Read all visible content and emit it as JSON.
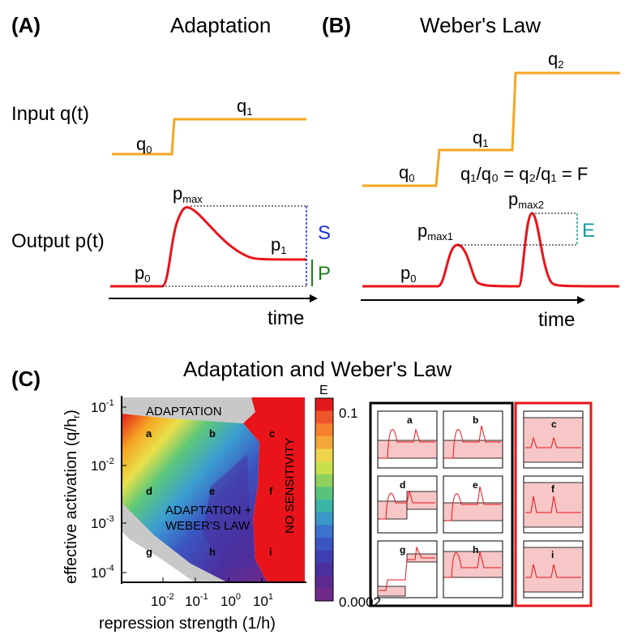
{
  "panel_a": {
    "label": "(A)",
    "title": "Adaptation",
    "input_label": "Input q(t)",
    "output_label": "Output p(t)",
    "q0": "q",
    "q0_sub": "0",
    "q1": "q",
    "q1_sub": "1",
    "pmax": "p",
    "pmax_sub": "max",
    "p0": "p",
    "p0_sub": "0",
    "p1": "p",
    "p1_sub": "1",
    "s_label": "S",
    "p_label": "P",
    "time_label": "time"
  },
  "panel_b": {
    "label": "(B)",
    "title": "Weber's Law",
    "q0": "q",
    "q0_sub": "0",
    "q1": "q",
    "q1_sub": "1",
    "q2": "q",
    "q2_sub": "2",
    "ratio_eq": "q₁/q₀ = q₂/q₁ = F",
    "pmax1": "p",
    "pmax1_sub": "max1",
    "pmax2": "p",
    "pmax2_sub": "max2",
    "p0": "p",
    "p0_sub": "0",
    "e_label": "E",
    "time_label": "time"
  },
  "panel_c": {
    "label": "(C)",
    "title": "Adaptation and Weber's Law",
    "ylabel": "effective activation (q/h",
    "ylabel_sub": "r",
    "ylabel_end": ")",
    "xlabel": "repression strength (1/h)",
    "y_ticks": [
      {
        "base": "10",
        "exp": "-1"
      },
      {
        "base": "10",
        "exp": "-2"
      },
      {
        "base": "10",
        "exp": "-3"
      },
      {
        "base": "10",
        "exp": "-4"
      }
    ],
    "x_ticks": [
      {
        "base": "10",
        "exp": "-2"
      },
      {
        "base": "10",
        "exp": "-1"
      },
      {
        "base": "10",
        "exp": "0"
      },
      {
        "base": "10",
        "exp": "1"
      }
    ],
    "region_adaptation": "ADAPTATION",
    "region_weber_1": "ADAPTATION +",
    "region_weber_2": "WEBER'S LAW",
    "region_nosens": "NO SENSITIVITY",
    "grid_letters": [
      "a",
      "b",
      "c",
      "d",
      "e",
      "f",
      "g",
      "h",
      "i"
    ],
    "colorbar_title": "E",
    "colorbar_max": "0.1",
    "colorbar_min": "0.0002",
    "colors": {
      "orange": "#f5a623",
      "red": "#e8141a",
      "blue_guide": "#1f2fd6",
      "green_guide": "#1e7d1e",
      "teal_guide": "#1a9c9c",
      "adapt_gray": "#c8c8c8",
      "pink": "#f7c6c6"
    },
    "colorbar_stops": [
      "#e31a1c",
      "#f0542a",
      "#f5802e",
      "#f4a63a",
      "#eed44a",
      "#c9e04e",
      "#8fd25e",
      "#58c47b",
      "#3cb5a6",
      "#3a98c9",
      "#3b73cf",
      "#3b55c2",
      "#3d3fb0",
      "#4b2f9e",
      "#5e2a92",
      "#6f2a8a"
    ]
  }
}
